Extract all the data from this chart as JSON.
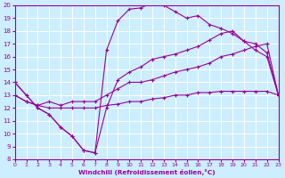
{
  "bg_color": "#cceeff",
  "line_color": "#990099",
  "grid_color": "#ffffff",
  "xlabel": "Windchill (Refroidissement éolien,°C)",
  "xlim": [
    0,
    23
  ],
  "ylim": [
    8,
    20
  ],
  "yticks": [
    8,
    9,
    10,
    11,
    12,
    13,
    14,
    15,
    16,
    17,
    18,
    19,
    20
  ],
  "xticks": [
    0,
    1,
    2,
    3,
    4,
    5,
    6,
    7,
    8,
    9,
    10,
    11,
    12,
    13,
    14,
    15,
    16,
    17,
    18,
    19,
    20,
    21,
    22,
    23
  ],
  "lines": [
    {
      "x": [
        0,
        1,
        2,
        3,
        4,
        5,
        6,
        7,
        8,
        9,
        10,
        11,
        12,
        13,
        14,
        15,
        16,
        17,
        18,
        19,
        20,
        21,
        22,
        23
      ],
      "y": [
        14.0,
        13.0,
        12.0,
        11.5,
        10.5,
        9.8,
        8.7,
        8.5,
        16.5,
        18.8,
        19.7,
        19.8,
        20.2,
        20.0,
        19.5,
        19.0,
        19.2,
        18.5,
        18.2,
        17.8,
        17.2,
        17.0,
        16.3,
        13.0
      ]
    },
    {
      "x": [
        0,
        1,
        2,
        3,
        4,
        5,
        6,
        7,
        8,
        9,
        10,
        11,
        12,
        13,
        14,
        15,
        16,
        17,
        18,
        19,
        20,
        21,
        22,
        23
      ],
      "y": [
        14.0,
        13.0,
        12.0,
        11.5,
        10.5,
        9.8,
        8.7,
        8.5,
        12.0,
        14.2,
        14.8,
        15.2,
        15.8,
        16.0,
        16.2,
        16.5,
        16.8,
        17.3,
        17.8,
        18.0,
        17.2,
        16.5,
        16.0,
        13.0
      ]
    },
    {
      "x": [
        0,
        1,
        2,
        3,
        4,
        5,
        6,
        7,
        8,
        9,
        10,
        11,
        12,
        13,
        14,
        15,
        16,
        17,
        18,
        19,
        20,
        21,
        22,
        23
      ],
      "y": [
        13.0,
        12.5,
        12.2,
        12.0,
        12.0,
        12.0,
        12.0,
        12.0,
        12.2,
        12.3,
        12.5,
        12.5,
        12.7,
        12.8,
        13.0,
        13.0,
        13.2,
        13.2,
        13.3,
        13.3,
        13.3,
        13.3,
        13.3,
        13.0
      ]
    },
    {
      "x": [
        0,
        1,
        2,
        3,
        4,
        5,
        6,
        7,
        8,
        9,
        10,
        11,
        12,
        13,
        14,
        15,
        16,
        17,
        18,
        19,
        20,
        21,
        22,
        23
      ],
      "y": [
        13.0,
        12.5,
        12.2,
        12.5,
        12.2,
        12.5,
        12.5,
        12.5,
        13.0,
        13.5,
        14.0,
        14.0,
        14.2,
        14.5,
        14.8,
        15.0,
        15.2,
        15.5,
        16.0,
        16.2,
        16.5,
        16.8,
        17.0,
        13.0
      ]
    }
  ]
}
